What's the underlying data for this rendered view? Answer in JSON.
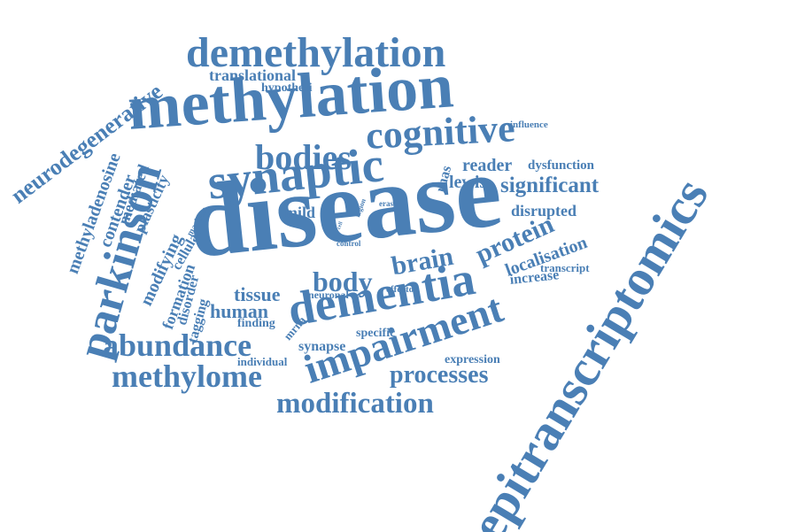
{
  "colors": {
    "word": "#4a7fb5",
    "background": "#ffffff"
  },
  "words": [
    "epitranscriptomics",
    "disease",
    "methylation",
    "demethylation",
    "synaptic",
    "cognitive",
    "dementia",
    "impairment",
    "parkinson",
    "bodies",
    "abundance",
    "methylome",
    "modification",
    "processes",
    "brain",
    "protein",
    "body",
    "significant",
    "neurodegenerative",
    "methyladenosine",
    "contender",
    "mediated",
    "plasticity",
    "modifying",
    "cellular",
    "formation",
    "disorder",
    "tagging",
    "translational",
    "hypothesi",
    "reader",
    "dysfunction",
    "lewis",
    "rnas",
    "disrupted",
    "mild",
    "localisation",
    "transcript",
    "increase",
    "tissue",
    "human",
    "neuronal",
    "mrna",
    "effector",
    "finding",
    "synapse",
    "specific",
    "individual",
    "expression",
    "influence",
    "eraser",
    "region",
    "control",
    "machine",
    "cell"
  ]
}
